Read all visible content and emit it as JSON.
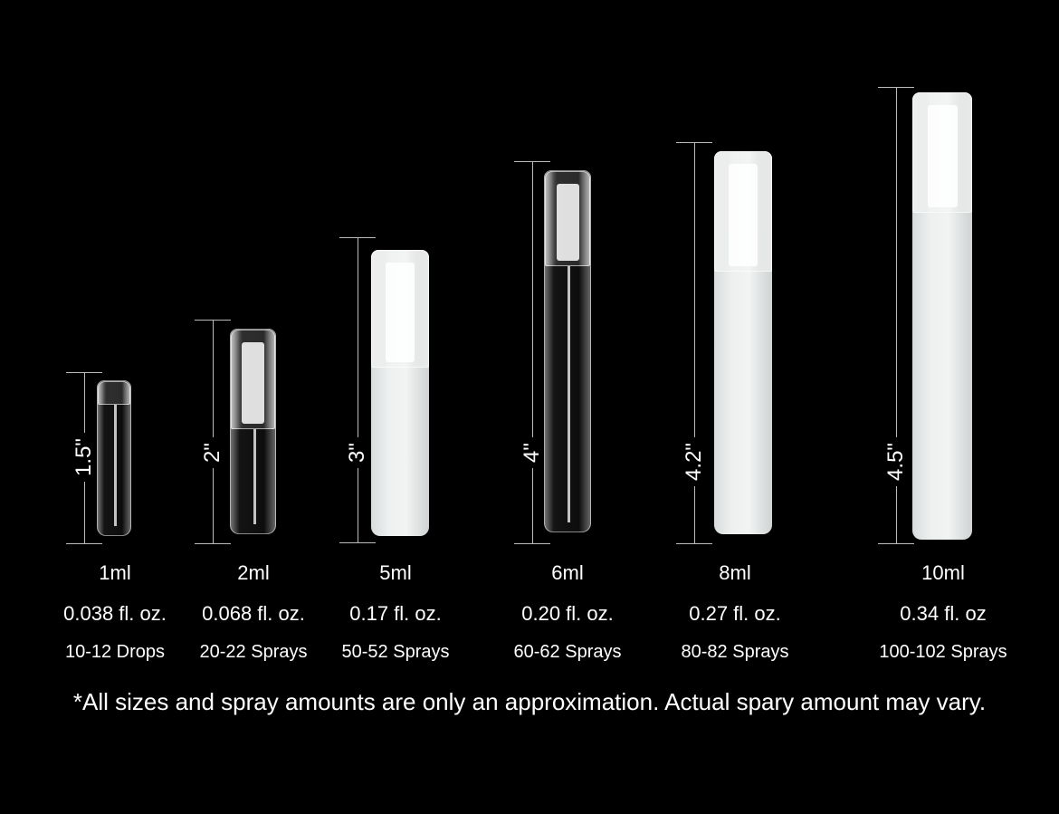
{
  "items": [
    {
      "height": "1.5\"",
      "volume": "1ml",
      "fl_oz": "0.038 fl. oz.",
      "amount": "10-12 Drops",
      "finish": "clear"
    },
    {
      "height": "2\"",
      "volume": "2ml",
      "fl_oz": "0.068 fl. oz.",
      "amount": "20-22 Sprays",
      "finish": "clear"
    },
    {
      "height": "3\"",
      "volume": "5ml",
      "fl_oz": "0.17 fl. oz.",
      "amount": "50-52 Sprays",
      "finish": "frosted"
    },
    {
      "height": "4\"",
      "volume": "6ml",
      "fl_oz": "0.20 fl. oz.",
      "amount": "60-62 Sprays",
      "finish": "clear"
    },
    {
      "height": "4.2\"",
      "volume": "8ml",
      "fl_oz": "0.27 fl. oz.",
      "amount": "80-82 Sprays",
      "finish": "frosted"
    },
    {
      "height": "4.5\"",
      "volume": "10ml",
      "fl_oz": "0.34 fl. oz",
      "amount": "100-102 Sprays",
      "finish": "frosted"
    }
  ],
  "note": "*All sizes and spray amounts are only an approximation. Actual spary amount may vary.",
  "colors": {
    "background": "#000000",
    "text": "#ffffff"
  }
}
